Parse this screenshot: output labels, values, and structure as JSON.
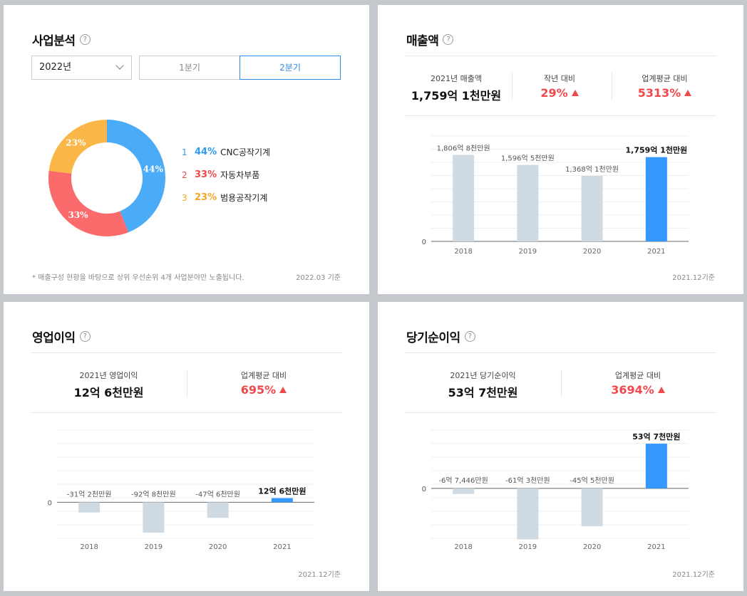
{
  "business": {
    "title": "사업분석",
    "help": "?",
    "year_select": "2022년",
    "tabs": [
      "1분기",
      "2분기"
    ],
    "active_tab": 1,
    "legend": [
      {
        "idx": "1",
        "pct": "44%",
        "name": "CNC공작기계",
        "color": "#2e9af0"
      },
      {
        "idx": "2",
        "pct": "33%",
        "name": "자동차부품",
        "color": "#f0494c"
      },
      {
        "idx": "3",
        "pct": "23%",
        "name": "범용공작기계",
        "color": "#f5a623"
      }
    ],
    "note": "* 매출구성 현황을 바탕으로 상위 우선순위 4개 사업분야만 노출됩니다.",
    "basis": "2022.03 기준"
  },
  "sales": {
    "title": "매출액",
    "help": "?",
    "summary": {
      "label1": "2021년 매출액",
      "value1": "1,759억 1천만원",
      "label2": "작년 대비",
      "value2": "29%",
      "label3": "업계평균 대비",
      "value3": "5313%"
    },
    "basis": "2021.12기준"
  },
  "operating": {
    "title": "영업이익",
    "help": "?",
    "summary": {
      "label1": "2021년 영업이익",
      "value1": "12억 6천만원",
      "label2": "업계평균 대비",
      "value2": "695%"
    },
    "basis": "2021.12기준"
  },
  "net": {
    "title": "당기순이익",
    "help": "?",
    "summary": {
      "label1": "2021년 당기순이익",
      "value1": "53억 7천만원",
      "label2": "업계평균 대비",
      "value2": "3694%"
    },
    "basis": "2021.12기준"
  },
  "chart_data": [
    {
      "id": "business-donut",
      "type": "pie",
      "categories": [
        "CNC공작기계",
        "자동차부품",
        "범용공작기계"
      ],
      "values": [
        44,
        33,
        23
      ],
      "labels": [
        "44%",
        "33%",
        "23%"
      ],
      "colors": [
        "#4aabf7",
        "#fb6b6b",
        "#fbb648"
      ]
    },
    {
      "id": "sales-bar",
      "type": "bar",
      "categories": [
        "2018",
        "2019",
        "2020",
        "2021"
      ],
      "values": [
        1806.8,
        1596.5,
        1368.1,
        1759.1
      ],
      "labels": [
        "1,806억 8천만원",
        "1,596억 5천만원",
        "1,368억 1천만원",
        "1,759억 1천만원"
      ],
      "ylim": [
        0,
        2200
      ],
      "yticks": [
        "0"
      ],
      "highlight_index": 3,
      "colors": {
        "normal": "#d0dae3",
        "highlight": "#3399ff"
      }
    },
    {
      "id": "operating-bar",
      "type": "bar",
      "categories": [
        "2018",
        "2019",
        "2020",
        "2021"
      ],
      "values": [
        -31.2,
        -92.8,
        -47.6,
        12.6
      ],
      "labels": [
        "-31억 2천만원",
        "-92억 8천만원",
        "-47억 6천만원",
        "12억 6천만원"
      ],
      "ylim": [
        -110,
        220
      ],
      "yticks": [
        "0"
      ],
      "highlight_index": 3,
      "colors": {
        "normal": "#d0dae3",
        "highlight": "#3399ff"
      }
    },
    {
      "id": "net-bar",
      "type": "bar",
      "categories": [
        "2018",
        "2019",
        "2020",
        "2021"
      ],
      "values": [
        -6.7446,
        -61.3,
        -45.5,
        53.7
      ],
      "labels": [
        "-6억 7,446만원",
        "-61억 3천만원",
        "-45억 5천만원",
        "53억 7천만원"
      ],
      "ylim": [
        -60,
        70
      ],
      "yticks": [
        "0"
      ],
      "highlight_index": 3,
      "colors": {
        "normal": "#d0dae3",
        "highlight": "#3399ff"
      }
    }
  ]
}
